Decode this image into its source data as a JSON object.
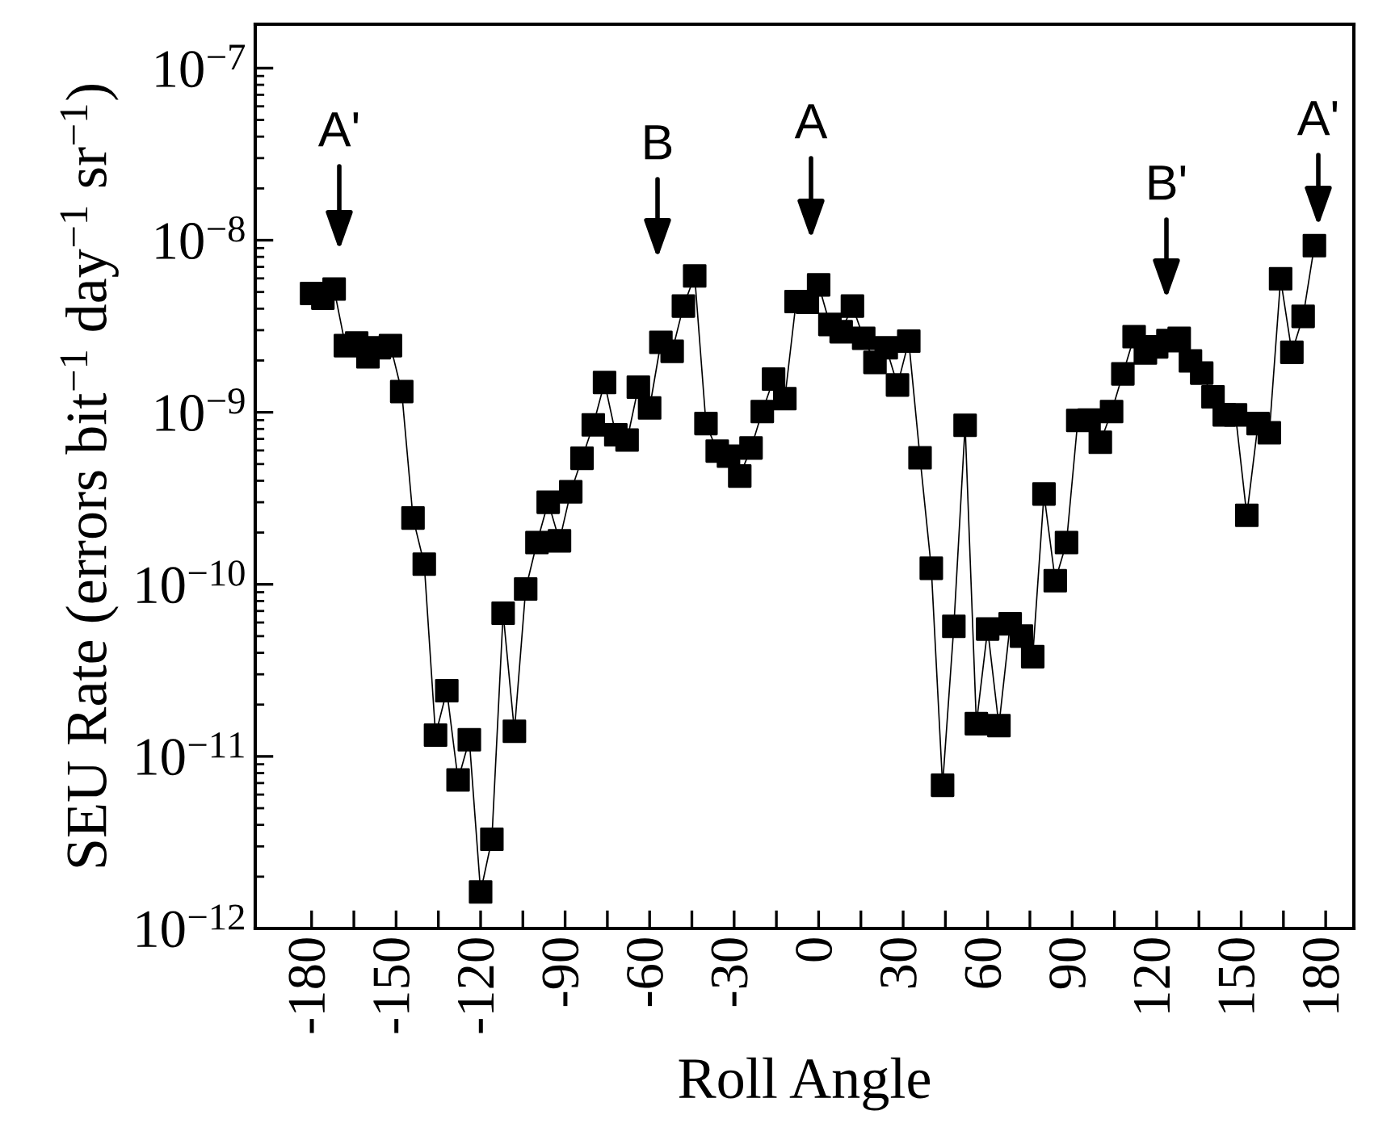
{
  "chart_data": {
    "type": "line",
    "xlabel": "Roll Angle",
    "ylabel": "SEU Rate (errors bit$^{−1}$ day$^{−1}$ sr$^{−1}$)",
    "x": [
      -180,
      -176,
      -172,
      -168,
      -164,
      -160,
      -156,
      -152,
      -148,
      -144,
      -140,
      -136,
      -132,
      -128,
      -124,
      -120,
      -116,
      -112,
      -108,
      -104,
      -100,
      -96,
      -92,
      -88,
      -84,
      -80,
      -76,
      -72,
      -68,
      -64,
      -60,
      -56,
      -52,
      -48,
      -44,
      -40,
      -36,
      -32,
      -28,
      -24,
      -20,
      -16,
      -12,
      -8,
      -4,
      0,
      4,
      8,
      12,
      16,
      20,
      24,
      28,
      32,
      36,
      40,
      44,
      48,
      52,
      56,
      60,
      64,
      68,
      72,
      76,
      80,
      84,
      88,
      92,
      96,
      100,
      104,
      108,
      112,
      116,
      120,
      124,
      128,
      132,
      136,
      140,
      144,
      148,
      152,
      156,
      160,
      164,
      168,
      172,
      176
    ],
    "series": [
      {
        "color": "#000000",
        "values": [
          4.9e-09,
          4.6e-09,
          5.2e-09,
          2.44e-09,
          2.53e-09,
          2.1e-09,
          2.37e-09,
          2.44e-09,
          1.32e-09,
          2.43e-10,
          1.31e-10,
          1.33e-11,
          2.41e-11,
          7.3e-12,
          1.25e-11,
          1.63e-12,
          3.3e-12,
          6.8e-11,
          1.4e-11,
          9.4e-11,
          1.75e-10,
          3e-10,
          1.79e-10,
          3.45e-10,
          5.4e-10,
          8.45e-10,
          1.49e-09,
          7.4e-10,
          6.9e-10,
          1.4e-09,
          1.06e-09,
          2.55e-09,
          2.26e-09,
          4.14e-09,
          6.2e-09,
          8.6e-10,
          5.95e-10,
          5.56e-10,
          4.26e-10,
          6.2e-10,
          1.01e-09,
          1.56e-09,
          1.2e-09,
          4.4e-09,
          4.36e-09,
          5.5e-09,
          3.24e-09,
          2.94e-09,
          4.14e-09,
          2.69e-09,
          1.95e-09,
          2.37e-09,
          1.44e-09,
          2.59e-09,
          5.44e-10,
          1.24e-10,
          6.8e-12,
          5.7e-11,
          8.4e-10,
          1.55e-11,
          5.5e-11,
          1.51e-11,
          5.9e-11,
          5e-11,
          3.8e-11,
          3.35e-10,
          1.05e-10,
          1.75e-10,
          8.97e-10,
          9e-10,
          6.7e-10,
          1.01e-09,
          1.67e-09,
          2.75e-09,
          2.21e-09,
          2.4e-09,
          2.61e-09,
          2.69e-09,
          1.99e-09,
          1.69e-09,
          1.23e-09,
          9.66e-10,
          9.66e-10,
          2.52e-10,
          8.6e-10,
          7.6e-10,
          5.97e-09,
          2.23e-09,
          3.61e-09,
          9.3e-09
        ]
      }
    ],
    "marker": "square",
    "line_style": "solid",
    "log": "y",
    "grid": false,
    "legend": false,
    "xlim": [
      -200,
      190
    ],
    "ylim": [
      1e-12,
      1.8e-07
    ],
    "xticks": [
      -180,
      {
        "value": -165,
        "label": null
      },
      -150,
      {
        "value": -135,
        "label": null
      },
      -120,
      {
        "value": -105,
        "label": null
      },
      -90,
      {
        "value": -75,
        "label": null
      },
      -60,
      {
        "value": -45,
        "label": null
      },
      -30,
      {
        "value": -15,
        "label": null
      },
      0,
      {
        "value": 15,
        "label": null
      },
      30,
      {
        "value": 45,
        "label": null
      },
      60,
      {
        "value": 75,
        "label": null
      },
      90,
      {
        "value": 105,
        "label": null
      },
      120,
      {
        "value": 135,
        "label": null
      },
      150,
      {
        "value": 165,
        "label": null
      },
      180
    ],
    "yticks": [
      {
        "value": 1e-12,
        "label": "10$^{−12}$"
      },
      {
        "value": 1e-11,
        "label": "10$^{−11}$"
      },
      {
        "value": 1e-10,
        "label": "10$^{−10}$"
      },
      {
        "value": 1e-09,
        "label": "10$^{−9}$"
      },
      {
        "value": 1e-08,
        "label": "10$^{−8}$"
      },
      {
        "value": 1e-07,
        "label": "10$^{−7}$"
      }
    ],
    "annotations": [
      "A'",
      "B",
      "A",
      "B'",
      "A'"
    ]
  }
}
